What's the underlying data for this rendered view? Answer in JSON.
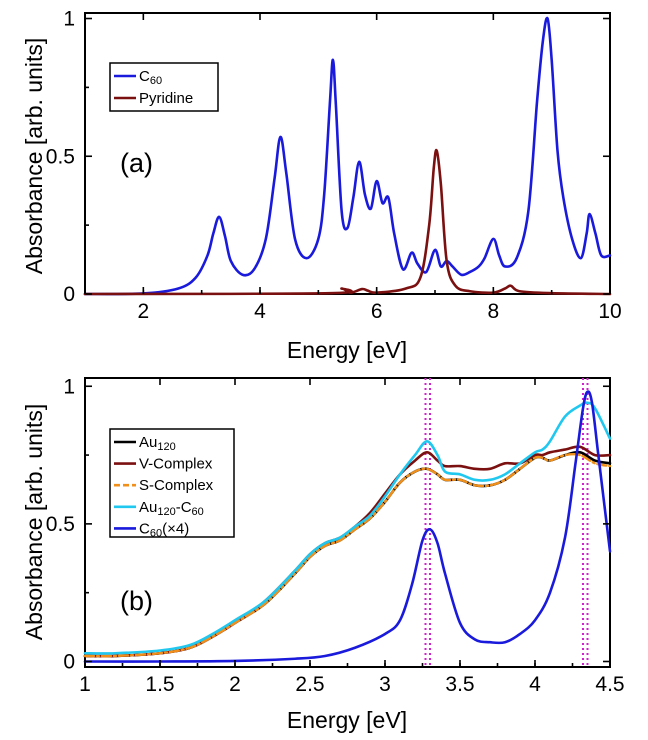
{
  "chart_data": [
    {
      "type": "line",
      "panel_label": "(a)",
      "xlabel": "Energy [eV]",
      "ylabel": "Absorbance [arb. units]",
      "xlim": [
        1,
        10
      ],
      "ylim": [
        0,
        1.02
      ],
      "xticks": [
        2,
        4,
        6,
        8,
        10
      ],
      "xtick_labels": [
        "2",
        "4",
        "6",
        "8",
        "10"
      ],
      "yticks": [
        0,
        0.5,
        1
      ],
      "ytick_labels": [
        "0",
        "0.5",
        "1"
      ],
      "legend_position": "top-left",
      "series": [
        {
          "name": "C",
          "name_sub": "60",
          "color": "#1a1adc",
          "x": [
            1.0,
            2.0,
            2.6,
            2.9,
            3.1,
            3.2,
            3.3,
            3.4,
            3.5,
            3.7,
            3.9,
            4.1,
            4.25,
            4.35,
            4.45,
            4.6,
            4.8,
            5.0,
            5.1,
            5.2,
            5.25,
            5.3,
            5.4,
            5.5,
            5.6,
            5.7,
            5.8,
            5.9,
            6.0,
            6.1,
            6.2,
            6.3,
            6.45,
            6.6,
            6.7,
            6.85,
            7.0,
            7.1,
            7.2,
            7.3,
            7.45,
            7.6,
            7.75,
            7.85,
            8.0,
            8.1,
            8.2,
            8.4,
            8.6,
            8.75,
            8.85,
            8.93,
            9.0,
            9.1,
            9.2,
            9.35,
            9.5,
            9.6,
            9.65,
            9.75,
            9.85,
            10.0
          ],
          "y": [
            0.0,
            0.002,
            0.02,
            0.06,
            0.14,
            0.22,
            0.28,
            0.21,
            0.12,
            0.07,
            0.09,
            0.2,
            0.42,
            0.57,
            0.44,
            0.2,
            0.13,
            0.2,
            0.36,
            0.7,
            0.85,
            0.69,
            0.3,
            0.24,
            0.35,
            0.48,
            0.36,
            0.31,
            0.41,
            0.33,
            0.35,
            0.22,
            0.09,
            0.15,
            0.11,
            0.08,
            0.16,
            0.1,
            0.12,
            0.1,
            0.07,
            0.08,
            0.1,
            0.13,
            0.2,
            0.14,
            0.1,
            0.13,
            0.3,
            0.7,
            0.92,
            1.0,
            0.85,
            0.52,
            0.35,
            0.2,
            0.13,
            0.22,
            0.29,
            0.22,
            0.14,
            0.14
          ]
        },
        {
          "name": "Pyridine",
          "color": "#7b1010",
          "x": [
            1.0,
            5.2,
            5.4,
            5.55,
            5.75,
            5.85,
            6.0,
            6.5,
            6.75,
            6.9,
            6.98,
            7.03,
            7.1,
            7.2,
            7.35,
            7.6,
            8.0,
            8.2,
            8.3,
            8.45,
            9.0,
            10.0
          ],
          "y": [
            0.0,
            0.003,
            0.02,
            0.005,
            0.018,
            0.012,
            0.005,
            0.02,
            0.06,
            0.25,
            0.46,
            0.52,
            0.4,
            0.12,
            0.03,
            0.01,
            0.005,
            0.02,
            0.03,
            0.01,
            0.003,
            0.0
          ]
        }
      ]
    },
    {
      "type": "line",
      "panel_label": "(b)",
      "xlabel": "Energy [eV]",
      "ylabel": "Absorbance [arb. units]",
      "xlim": [
        1,
        4.5
      ],
      "ylim": [
        -0.02,
        1.03
      ],
      "xticks": [
        1,
        1.5,
        2,
        2.5,
        3,
        3.5,
        4,
        4.5
      ],
      "xtick_labels": [
        "1",
        "1.5",
        "2",
        "2.5",
        "3",
        "3.5",
        "4",
        "4.5"
      ],
      "yticks": [
        0,
        0.5,
        1
      ],
      "ytick_labels": [
        "0",
        "0.5",
        "1"
      ],
      "vlines": [
        3.27,
        3.3,
        4.32,
        4.35
      ],
      "vline_color": "#d020d0",
      "legend_position": "top-left",
      "series": [
        {
          "name": "Au",
          "name_sub": "120",
          "color": "#000000",
          "x": [
            1.0,
            1.2,
            1.5,
            1.7,
            1.85,
            2.0,
            2.2,
            2.4,
            2.5,
            2.6,
            2.7,
            2.8,
            2.9,
            3.0,
            3.1,
            3.2,
            3.28,
            3.35,
            3.4,
            3.5,
            3.6,
            3.7,
            3.8,
            3.9,
            4.0,
            4.05,
            4.1,
            4.2,
            4.3,
            4.4,
            4.5
          ],
          "y": [
            0.02,
            0.02,
            0.03,
            0.05,
            0.09,
            0.14,
            0.21,
            0.32,
            0.38,
            0.42,
            0.44,
            0.48,
            0.52,
            0.58,
            0.65,
            0.69,
            0.7,
            0.68,
            0.66,
            0.66,
            0.64,
            0.64,
            0.66,
            0.7,
            0.74,
            0.74,
            0.73,
            0.75,
            0.76,
            0.73,
            0.72
          ]
        },
        {
          "name": "V-Complex",
          "color": "#7b1010",
          "x": [
            1.0,
            1.2,
            1.5,
            1.7,
            1.85,
            2.0,
            2.2,
            2.4,
            2.5,
            2.6,
            2.7,
            2.8,
            2.9,
            3.0,
            3.1,
            3.2,
            3.28,
            3.35,
            3.4,
            3.5,
            3.6,
            3.7,
            3.8,
            3.9,
            4.0,
            4.05,
            4.1,
            4.2,
            4.3,
            4.4,
            4.5
          ],
          "y": [
            0.02,
            0.02,
            0.03,
            0.05,
            0.09,
            0.14,
            0.22,
            0.33,
            0.39,
            0.43,
            0.45,
            0.49,
            0.54,
            0.61,
            0.68,
            0.73,
            0.76,
            0.73,
            0.71,
            0.71,
            0.7,
            0.7,
            0.72,
            0.72,
            0.75,
            0.75,
            0.76,
            0.77,
            0.78,
            0.75,
            0.75
          ]
        },
        {
          "name": "S-Complex",
          "color": "#f0901a",
          "dashed": true,
          "x": [
            1.0,
            1.2,
            1.5,
            1.7,
            1.85,
            2.0,
            2.2,
            2.4,
            2.5,
            2.6,
            2.7,
            2.8,
            2.9,
            3.0,
            3.1,
            3.2,
            3.28,
            3.35,
            3.4,
            3.5,
            3.6,
            3.7,
            3.8,
            3.9,
            4.0,
            4.05,
            4.1,
            4.2,
            4.3,
            4.4,
            4.5
          ],
          "y": [
            0.02,
            0.02,
            0.03,
            0.05,
            0.09,
            0.14,
            0.21,
            0.32,
            0.38,
            0.42,
            0.44,
            0.48,
            0.52,
            0.58,
            0.65,
            0.69,
            0.7,
            0.68,
            0.66,
            0.66,
            0.64,
            0.64,
            0.66,
            0.7,
            0.74,
            0.74,
            0.73,
            0.75,
            0.75,
            0.72,
            0.71
          ]
        },
        {
          "name": "Au",
          "name_sub": "120",
          "name_suffix": "-C",
          "name_suffix_sub": "60",
          "color": "#20c8f0",
          "x": [
            1.0,
            1.2,
            1.5,
            1.7,
            1.85,
            2.0,
            2.2,
            2.4,
            2.5,
            2.6,
            2.7,
            2.8,
            2.9,
            3.0,
            3.1,
            3.2,
            3.28,
            3.35,
            3.4,
            3.5,
            3.6,
            3.7,
            3.8,
            3.9,
            4.0,
            4.05,
            4.1,
            4.2,
            4.3,
            4.35,
            4.4,
            4.5
          ],
          "y": [
            0.03,
            0.03,
            0.04,
            0.06,
            0.1,
            0.15,
            0.22,
            0.33,
            0.39,
            0.43,
            0.45,
            0.49,
            0.53,
            0.6,
            0.68,
            0.75,
            0.8,
            0.75,
            0.69,
            0.68,
            0.66,
            0.66,
            0.68,
            0.72,
            0.76,
            0.77,
            0.8,
            0.89,
            0.93,
            0.94,
            0.92,
            0.81
          ]
        },
        {
          "name": "C",
          "name_sub": "60",
          "name_suffix": "(×4)",
          "color": "#1a1adc",
          "x": [
            1.0,
            1.5,
            2.0,
            2.4,
            2.6,
            2.8,
            3.0,
            3.1,
            3.18,
            3.25,
            3.3,
            3.35,
            3.4,
            3.5,
            3.6,
            3.7,
            3.8,
            3.9,
            4.0,
            4.1,
            4.2,
            4.27,
            4.32,
            4.35,
            4.38,
            4.42,
            4.46,
            4.5
          ],
          "y": [
            0.0,
            0.0,
            0.002,
            0.01,
            0.02,
            0.05,
            0.1,
            0.15,
            0.28,
            0.44,
            0.48,
            0.43,
            0.32,
            0.14,
            0.08,
            0.07,
            0.07,
            0.1,
            0.15,
            0.25,
            0.45,
            0.72,
            0.92,
            0.98,
            0.94,
            0.76,
            0.58,
            0.4
          ]
        }
      ]
    }
  ]
}
